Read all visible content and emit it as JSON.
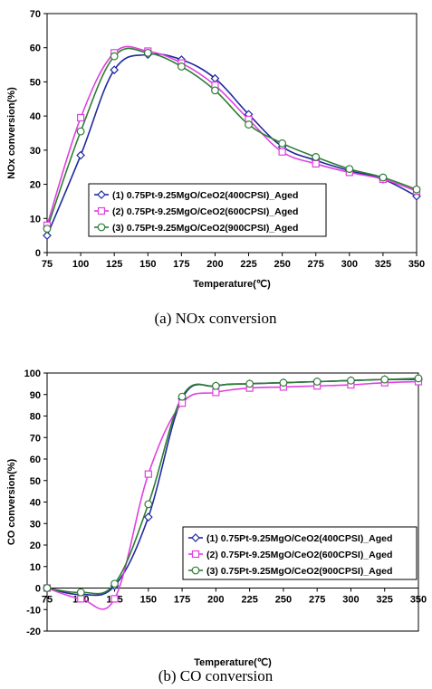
{
  "chart_data": [
    {
      "type": "line",
      "caption": "(a)  NOx  conversion",
      "xlabel": "Temperature(℃)",
      "ylabel": "NOx conversion(%)",
      "xlim": [
        75,
        350
      ],
      "ylim": [
        0,
        70
      ],
      "xticks": [
        75,
        100,
        125,
        150,
        175,
        200,
        225,
        250,
        275,
        300,
        325,
        350
      ],
      "yticks": [
        0,
        10,
        20,
        30,
        40,
        50,
        60,
        70
      ],
      "legend": "lower-left",
      "x": [
        75,
        100,
        125,
        150,
        175,
        200,
        225,
        250,
        275,
        300,
        325,
        350
      ],
      "series": [
        {
          "name": "(1) 0.75Pt-9.25MgO/CeO2(400CPSI)_Aged",
          "color": "#1f2a9e",
          "marker": "diamond",
          "values": [
            5,
            28.5,
            53.5,
            58,
            56.5,
            51,
            40.5,
            31,
            27,
            24,
            21.5,
            16.5
          ]
        },
        {
          "name": "(2) 0.75Pt-9.25MgO/CeO2(600CPSI)_Aged",
          "color": "#e040e0",
          "marker": "square",
          "values": [
            8,
            39.5,
            58.5,
            59,
            55.5,
            49,
            39,
            29.5,
            26,
            23.5,
            21.5,
            18
          ]
        },
        {
          "name": "(3) 0.75Pt-9.25MgO/CeO2(900CPSI)_Aged",
          "color": "#2e7d32",
          "marker": "circle",
          "values": [
            7,
            35.5,
            57.5,
            58.5,
            54.5,
            47.5,
            37.5,
            32,
            28,
            24.5,
            22,
            18.5
          ]
        }
      ]
    },
    {
      "type": "line",
      "caption": "(b)  CO  conversion",
      "xlabel": "Temperature(℃)",
      "ylabel": "CO conversion(%)",
      "xlim": [
        75,
        350
      ],
      "ylim": [
        -20,
        100
      ],
      "xticks": [
        75,
        100,
        125,
        150,
        175,
        200,
        225,
        250,
        275,
        300,
        325,
        350
      ],
      "yticks": [
        -20,
        -10,
        0,
        10,
        20,
        30,
        40,
        50,
        60,
        70,
        80,
        90,
        100
      ],
      "legend": "lower-right",
      "x": [
        75,
        100,
        125,
        150,
        175,
        200,
        225,
        250,
        275,
        300,
        325,
        350
      ],
      "series": [
        {
          "name": "(1) 0.75Pt-9.25MgO/CeO2(400CPSI)_Aged",
          "color": "#1f2a9e",
          "marker": "diamond",
          "values": [
            0,
            -3,
            1,
            33,
            88,
            94,
            95,
            95.5,
            96,
            96.5,
            97,
            97
          ]
        },
        {
          "name": "(2) 0.75Pt-9.25MgO/CeO2(600CPSI)_Aged",
          "color": "#e040e0",
          "marker": "square",
          "values": [
            0,
            -5,
            -5,
            53,
            86,
            91,
            93,
            93.5,
            94,
            94.5,
            95.5,
            96
          ]
        },
        {
          "name": "(3) 0.75Pt-9.25MgO/CeO2(900CPSI)_Aged",
          "color": "#2e7d32",
          "marker": "circle",
          "values": [
            0,
            -2,
            2,
            39,
            89,
            94,
            95,
            95.5,
            96,
            96.5,
            97,
            97.5
          ]
        }
      ]
    }
  ]
}
